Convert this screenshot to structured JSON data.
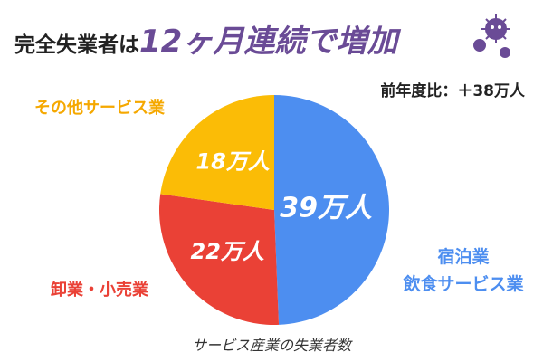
{
  "title": {
    "prefix": "完全失業者は",
    "highlight": "12ヶ月連続で増加",
    "prefix_color": "#222222",
    "highlight_color": "#6a4b96"
  },
  "yoy_label": "前年度比：＋38万人",
  "caption": "サービス産業の失業者数",
  "chart_data": {
    "type": "pie",
    "unit": "万人",
    "slices": [
      {
        "label_lines": [
          "宿泊業",
          "飲食サービス業"
        ],
        "value": 39,
        "value_label": "39万人",
        "color": "#4d8ef0"
      },
      {
        "label_lines": [
          "卸業・小売業"
        ],
        "value": 22,
        "value_label": "22万人",
        "color": "#ea4136"
      },
      {
        "label_lines": [
          "その他サービス業"
        ],
        "value": 18,
        "value_label": "18万人",
        "color": "#fbbc06"
      }
    ]
  },
  "decoration": {
    "icon": "virus-icon",
    "color": "#6a4b96"
  }
}
